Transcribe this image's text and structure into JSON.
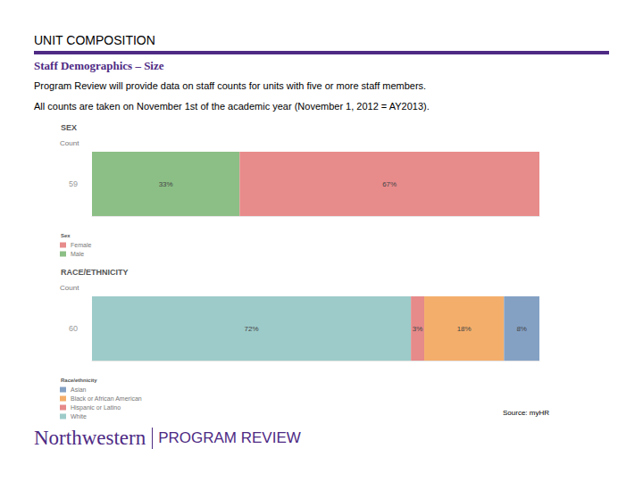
{
  "header": {
    "title": "UNIT COMPOSITION",
    "subtitle": "Staff Demographics – Size",
    "notes": [
      "Program Review will provide data on staff counts for units with five or more staff members.",
      "All counts are taken on November 1st of the academic year (November 1, 2012 = AY2013)."
    ]
  },
  "chart_data": [
    {
      "type": "bar",
      "orientation": "horizontal",
      "stacked": true,
      "title": "SEX",
      "ylabel": "Count",
      "categories": [
        "59"
      ],
      "xlim": [
        0,
        100
      ],
      "tick_labels": "y",
      "grid": false,
      "data_labels": true,
      "legend": "bottom-left",
      "legend_title": "Sex",
      "series": [
        {
          "name": "Male",
          "color": "#8cbf86",
          "values": [
            33
          ],
          "value_labels": [
            "33%"
          ]
        },
        {
          "name": "Female",
          "color": "#e88b8b",
          "values": [
            67
          ],
          "value_labels": [
            "67%"
          ]
        }
      ]
    },
    {
      "type": "bar",
      "orientation": "horizontal",
      "stacked": true,
      "title": "RACE/ETHNICITY",
      "ylabel": "Count",
      "categories": [
        "60"
      ],
      "xlim": [
        0,
        101
      ],
      "tick_labels": "y",
      "grid": false,
      "data_labels": true,
      "legend": "bottom-left",
      "legend_title": "Race/ethnicity",
      "series": [
        {
          "name": "White",
          "color": "#9dcbc9",
          "values": [
            72
          ],
          "value_labels": [
            "72%"
          ]
        },
        {
          "name": "Hispanic or Latino",
          "color": "#e68a8a",
          "values": [
            3
          ],
          "value_labels": [
            "3%"
          ]
        },
        {
          "name": "Black or African American",
          "color": "#f4ae6b",
          "values": [
            18
          ],
          "value_labels": [
            "18%"
          ]
        },
        {
          "name": "Asian",
          "color": "#84a1c4",
          "values": [
            8
          ],
          "value_labels": [
            "8%"
          ]
        }
      ]
    }
  ],
  "source": "Source: myHR",
  "footer": {
    "brand": "Northwestern",
    "label": "PROGRAM REVIEW"
  }
}
